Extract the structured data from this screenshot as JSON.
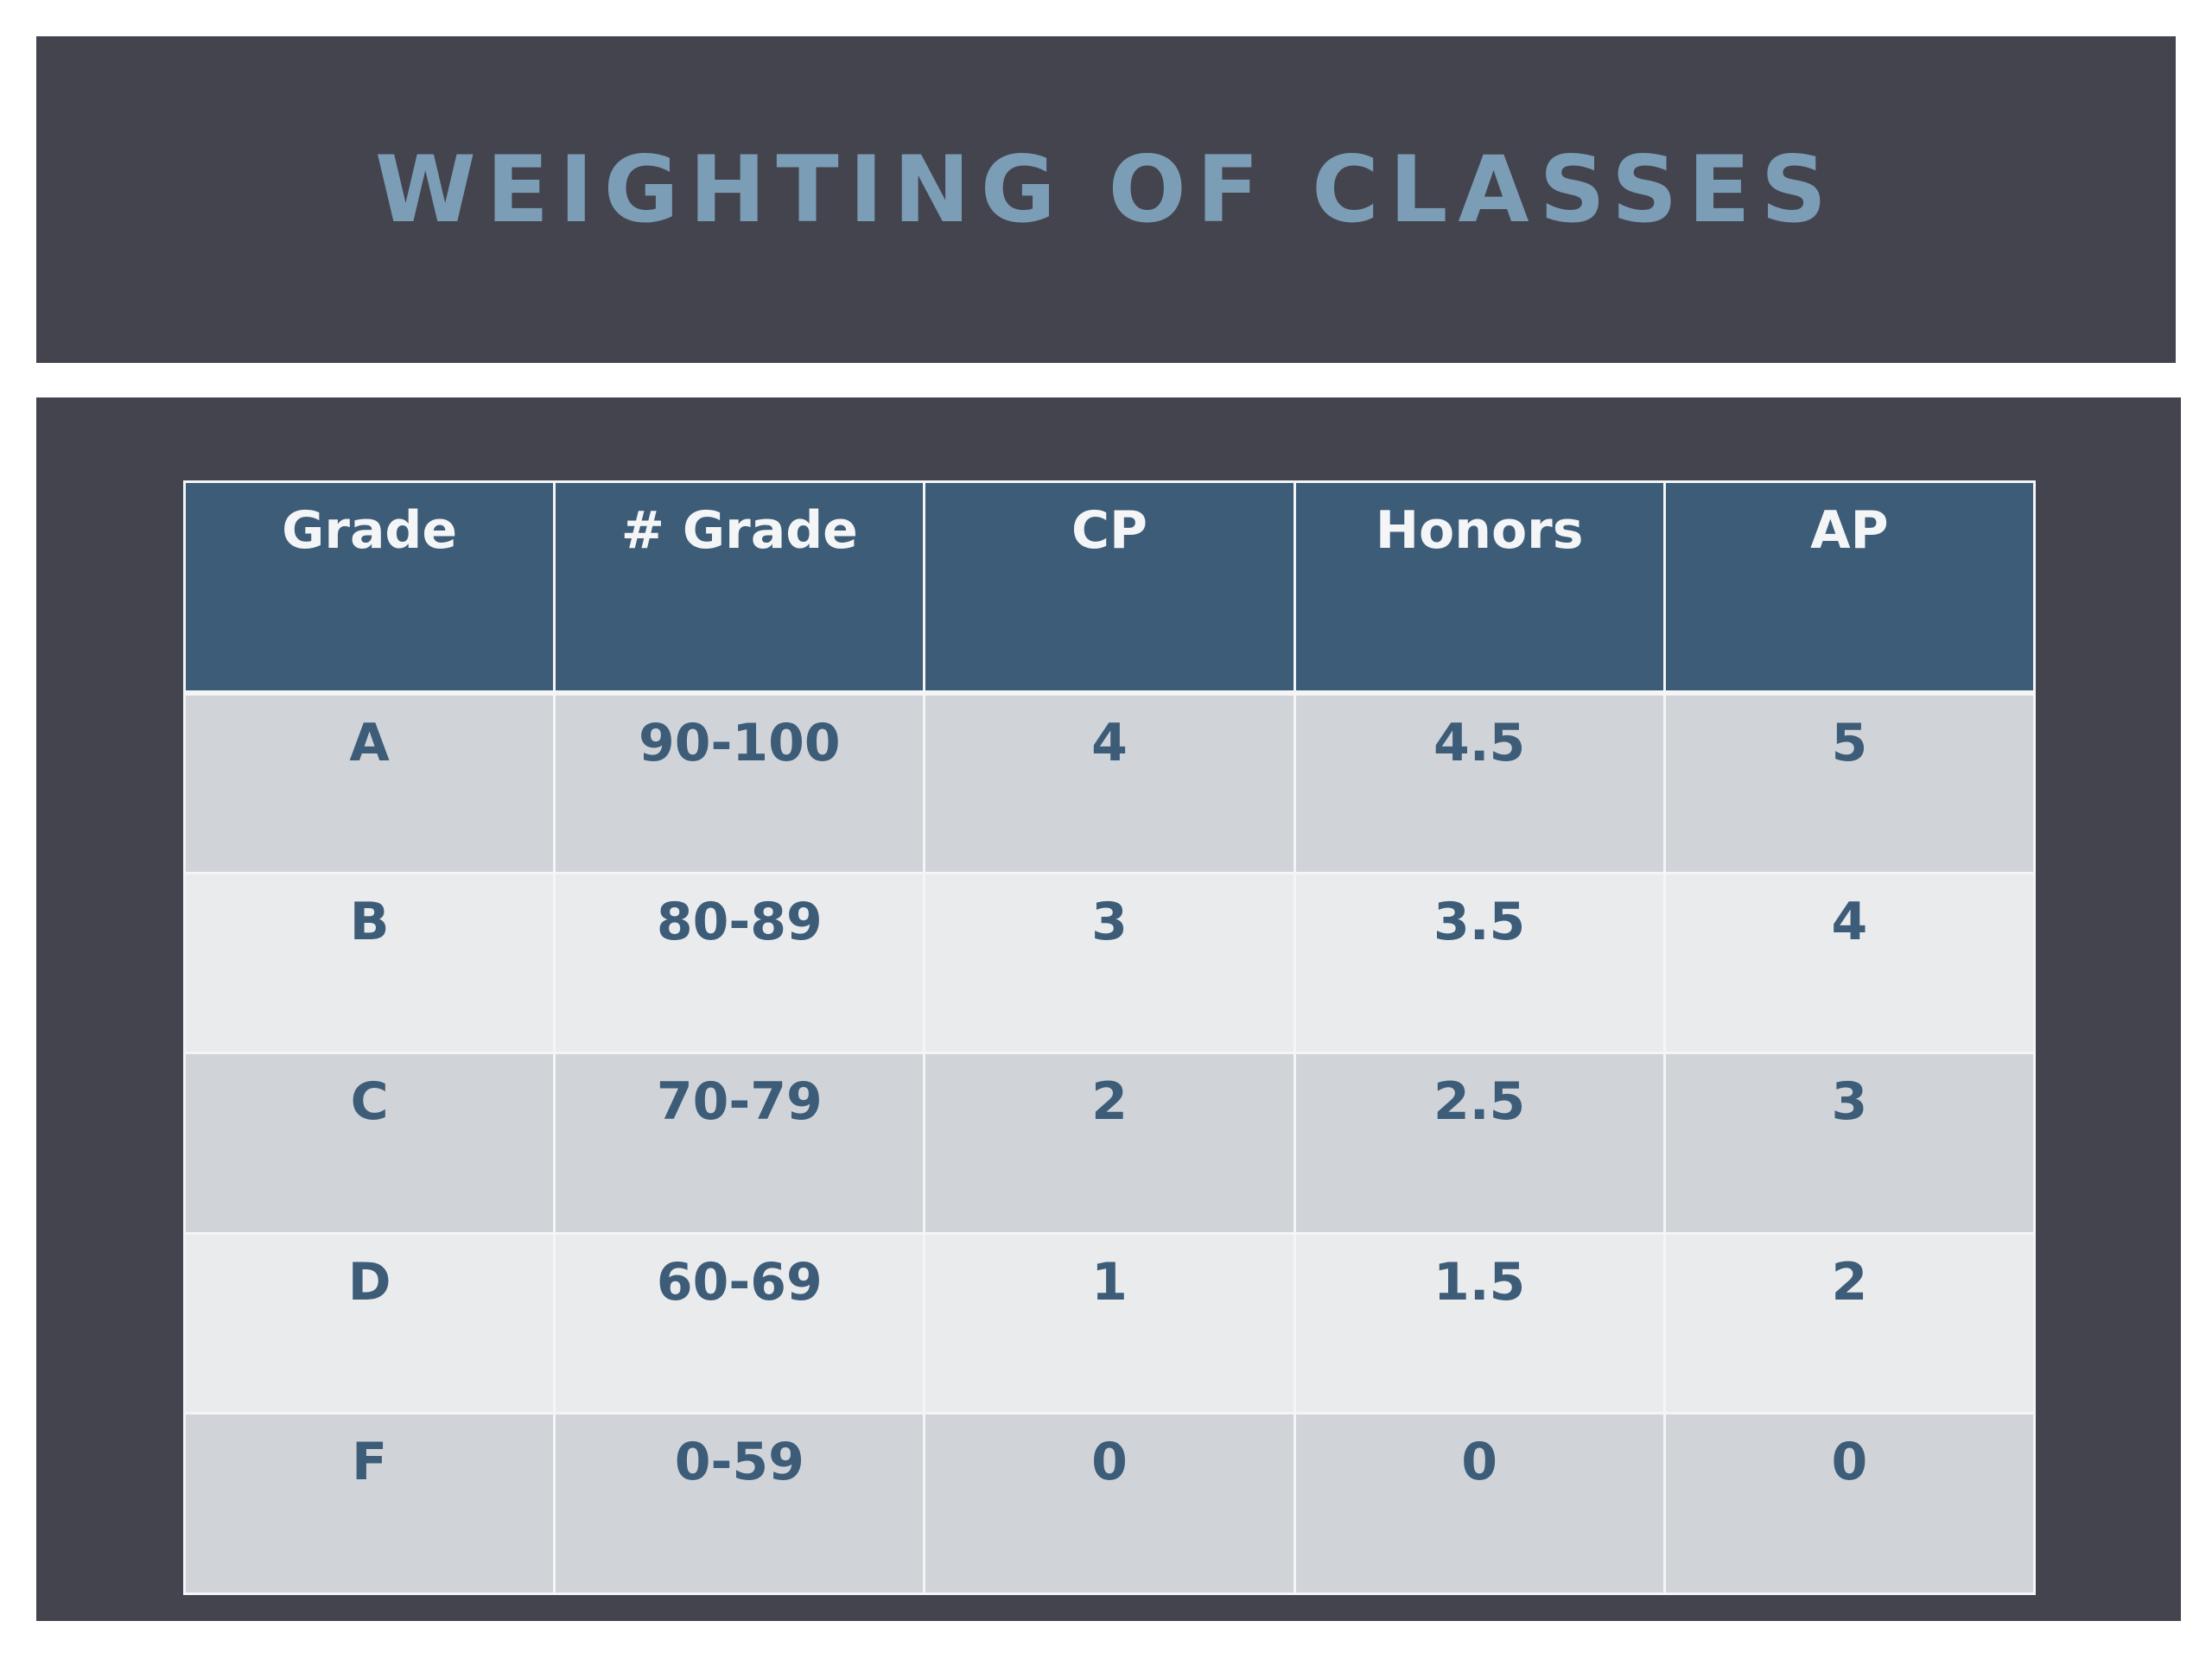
{
  "slide": {
    "title": "Weighting of Classes"
  },
  "table": {
    "headers": [
      "Grade",
      "# Grade",
      "CP",
      "Honors",
      "AP"
    ],
    "rows": [
      [
        "A",
        "90-100",
        "4",
        "4.5",
        "5"
      ],
      [
        "B",
        "80-89",
        "3",
        "3.5",
        "4"
      ],
      [
        "C",
        "70-79",
        "2",
        "2.5",
        "3"
      ],
      [
        "D",
        "60-69",
        "1",
        "1.5",
        "2"
      ],
      [
        "F",
        "0-59",
        "0",
        "0",
        "0"
      ]
    ]
  },
  "colors": {
    "panel_background": "#44444f",
    "title_text": "#7c9db6",
    "header_background": "#3d5c78",
    "header_text": "#f4f5f6",
    "row_dark": "#d0d4d9",
    "row_light": "#e9ebed",
    "cell_text": "#3d5c78"
  }
}
